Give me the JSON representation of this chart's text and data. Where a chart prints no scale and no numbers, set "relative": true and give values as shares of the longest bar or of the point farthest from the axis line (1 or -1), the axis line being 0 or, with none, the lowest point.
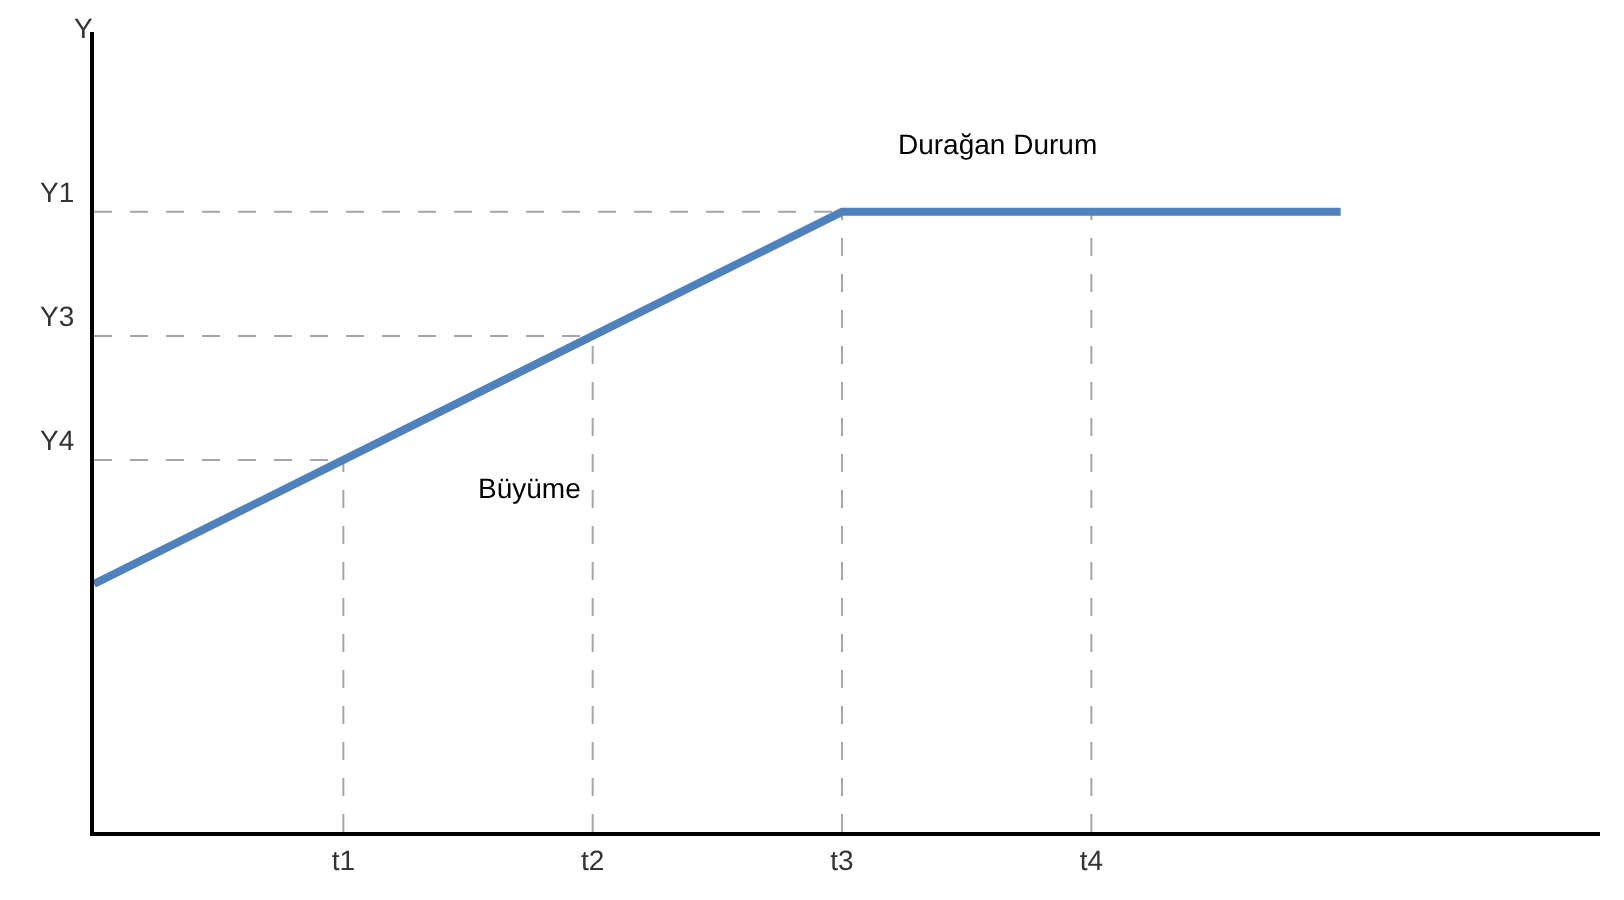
{
  "chart_data": {
    "type": "line",
    "relative": true,
    "categories": [
      null,
      "t1",
      "t2",
      "t3",
      "t4",
      null
    ],
    "grid": false,
    "series": [
      {
        "color": "#4f81bd",
        "values": [
          0.4,
          0.6,
          0.8,
          1,
          1,
          1
        ]
      }
    ],
    "ref_lines": [
      {
        "axis": "y",
        "value": 1,
        "label": "Y1",
        "color": "#a6a6a6",
        "line_style": "dashed"
      },
      {
        "axis": "y",
        "value": 0.8,
        "label": "Y3",
        "color": "#a6a6a6",
        "line_style": "dashed"
      },
      {
        "axis": "y",
        "value": 0.6,
        "label": "Y4",
        "color": "#a6a6a6",
        "line_style": "dashed"
      },
      {
        "axis": "x",
        "value": "t1",
        "color": "#a6a6a6",
        "line_style": "dashed"
      },
      {
        "axis": "x",
        "value": "t2",
        "color": "#a6a6a6",
        "line_style": "dashed"
      },
      {
        "axis": "x",
        "value": "t3",
        "color": "#a6a6a6",
        "line_style": "dashed"
      },
      {
        "axis": "x",
        "value": "t4",
        "color": "#a6a6a6",
        "line_style": "dashed"
      }
    ],
    "annotations": [
      "Y",
      "Büyüme",
      "Durağan Durum"
    ]
  }
}
